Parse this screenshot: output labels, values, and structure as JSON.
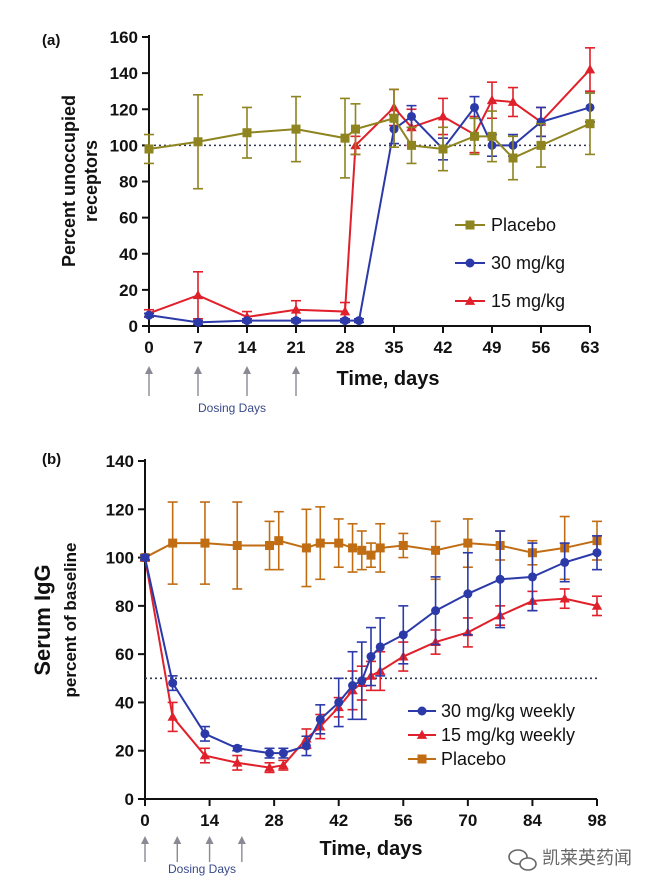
{
  "figure": {
    "watermark": "凯莱英药闻",
    "dosing_label": "Dosing Days"
  },
  "chart_data": [
    {
      "panel": "(a)",
      "type": "line",
      "title": "",
      "xlabel": "Time, days",
      "ylabel_lines": [
        "Percent unoccupied",
        "receptors"
      ],
      "xlim": [
        0,
        63
      ],
      "ylim": [
        0,
        160
      ],
      "xticks": [
        0,
        7,
        14,
        21,
        28,
        35,
        42,
        49,
        56,
        63
      ],
      "yticks": [
        0,
        20,
        40,
        60,
        80,
        100,
        120,
        140,
        160
      ],
      "reference_line_y": 100,
      "dosing_days": [
        0,
        7,
        14,
        21
      ],
      "legend_position": "center-right",
      "series": [
        {
          "name": "Placebo",
          "color": "#8e8420",
          "marker": "square",
          "x": [
            0,
            7,
            14,
            21,
            28,
            29.5,
            35,
            37.5,
            42,
            46.5,
            49,
            52,
            56,
            63
          ],
          "y": [
            98,
            102,
            107,
            109,
            104,
            109,
            115,
            100,
            98,
            105,
            105,
            93,
            100,
            112
          ],
          "err": [
            8,
            26,
            14,
            18,
            22,
            14,
            16,
            10,
            12,
            10,
            14,
            12,
            12,
            17
          ]
        },
        {
          "name": "30 mg/kg",
          "color": "#2b3aa8",
          "marker": "circle",
          "x": [
            0,
            7,
            14,
            21,
            28,
            30,
            35,
            37.5,
            42,
            46.5,
            49,
            52,
            56,
            63
          ],
          "y": [
            6,
            2,
            3,
            3,
            3,
            3,
            109,
            116,
            98,
            121,
            100,
            100,
            113,
            121
          ],
          "err": [
            1,
            1,
            1,
            1,
            1,
            1,
            8,
            6,
            6,
            6,
            6,
            6,
            8,
            8
          ]
        },
        {
          "name": "15 mg/kg",
          "color": "#e0202a",
          "marker": "triangle",
          "x": [
            0,
            7,
            14,
            21,
            28,
            29.5,
            35,
            37.5,
            42,
            46.5,
            49,
            52,
            56,
            63
          ],
          "y": [
            7,
            17,
            5,
            9,
            8,
            100,
            121,
            110,
            116,
            106,
            125,
            124,
            113,
            142
          ],
          "err": [
            2,
            13,
            3,
            5,
            5,
            5,
            10,
            10,
            10,
            10,
            10,
            8,
            8,
            12
          ]
        }
      ]
    },
    {
      "panel": "(b)",
      "type": "line",
      "title": "",
      "xlabel": "Time, days",
      "ylabel_lines": [
        "Serum IgG",
        "percent of baseline"
      ],
      "xlim": [
        0,
        98
      ],
      "ylim": [
        0,
        140
      ],
      "xticks": [
        0,
        14,
        28,
        42,
        56,
        70,
        84,
        98
      ],
      "yticks": [
        0,
        20,
        40,
        60,
        80,
        100,
        120,
        140
      ],
      "reference_line_y": 50,
      "dosing_days": [
        0,
        7,
        14,
        21
      ],
      "legend_position": "bottom-right",
      "series": [
        {
          "name": "30 mg/kg weekly",
          "color": "#2b3aa8",
          "marker": "circle",
          "x": [
            0,
            6,
            13,
            20,
            27,
            30,
            35,
            38,
            42,
            45,
            47,
            49,
            51,
            56,
            63,
            70,
            77,
            84,
            91,
            98
          ],
          "y": [
            100,
            48,
            27,
            21,
            19,
            19,
            22,
            33,
            40,
            47,
            49,
            59,
            63,
            68,
            78,
            85,
            91,
            92,
            98,
            102
          ],
          "err": [
            1,
            3,
            3,
            1,
            2,
            2,
            4,
            6,
            10,
            14,
            16,
            12,
            12,
            12,
            14,
            17,
            20,
            14,
            8,
            7
          ]
        },
        {
          "name": "15 mg/kg weekly",
          "color": "#e0202a",
          "marker": "triangle",
          "x": [
            0,
            6,
            13,
            20,
            27,
            30,
            35,
            38,
            42,
            45,
            47,
            49,
            51,
            56,
            63,
            70,
            77,
            84,
            91,
            98
          ],
          "y": [
            100,
            34,
            18,
            15,
            13,
            14,
            25,
            30,
            38,
            45,
            48,
            51,
            53,
            59,
            65,
            69,
            76,
            82,
            83,
            80
          ],
          "err": [
            1,
            6,
            3,
            3,
            2,
            2,
            4,
            5,
            4,
            8,
            7,
            6,
            8,
            6,
            5,
            6,
            4,
            4,
            4,
            4
          ]
        },
        {
          "name": "Placebo",
          "color": "#c06d14",
          "marker": "square",
          "x": [
            0,
            6,
            13,
            20,
            27,
            29,
            35,
            38,
            42,
            45,
            47,
            49,
            51,
            56,
            63,
            70,
            77,
            84,
            91,
            98
          ],
          "y": [
            100,
            106,
            106,
            105,
            105,
            107,
            104,
            106,
            106,
            104,
            103,
            101,
            104,
            105,
            103,
            106,
            105,
            102,
            104,
            107
          ],
          "err": [
            1,
            17,
            17,
            18,
            10,
            12,
            16,
            15,
            10,
            10,
            8,
            5,
            10,
            5,
            12,
            10,
            6,
            5,
            13,
            8
          ]
        }
      ]
    }
  ]
}
